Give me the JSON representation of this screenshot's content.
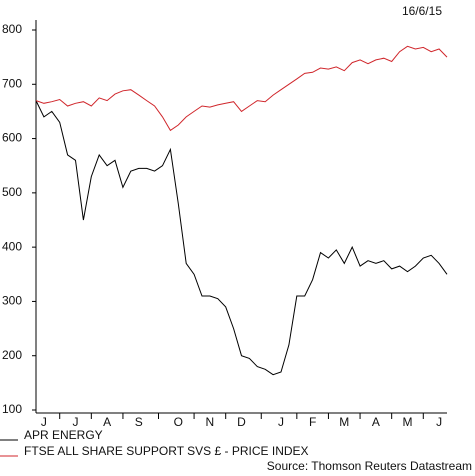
{
  "chart_data": {
    "type": "line",
    "date": "16/6/15",
    "source": "Source: Thomson Reuters Datastream",
    "categories": [
      null,
      "J",
      null,
      null,
      null,
      "J",
      null,
      null,
      null,
      "A",
      null,
      null,
      null,
      "S",
      null,
      null,
      null,
      null,
      "O",
      null,
      null,
      null,
      "N",
      null,
      null,
      null,
      "D",
      null,
      null,
      null,
      null,
      "J",
      null,
      null,
      null,
      "F",
      null,
      null,
      null,
      "M",
      null,
      null,
      null,
      "A",
      null,
      null,
      null,
      "M",
      null,
      null,
      null,
      "J",
      null
    ],
    "series": [
      {
        "name": "APR ENERGY",
        "color": "#000000",
        "values": [
          670,
          640,
          650,
          630,
          570,
          560,
          450,
          530,
          570,
          550,
          560,
          510,
          540,
          545,
          545,
          540,
          550,
          580,
          480,
          370,
          350,
          310,
          310,
          305,
          290,
          250,
          200,
          195,
          180,
          175,
          165,
          170,
          220,
          310,
          310,
          340,
          390,
          380,
          395,
          370,
          400,
          365,
          375,
          370,
          375,
          360,
          365,
          355,
          365,
          380,
          385,
          370,
          350
        ]
      },
      {
        "name": "FTSE ALL SHARE SUPPORT SVS £ - PRICE INDEX",
        "color": "#d0262b",
        "values": [
          670,
          665,
          668,
          672,
          660,
          665,
          668,
          660,
          675,
          670,
          682,
          688,
          690,
          680,
          670,
          660,
          640,
          615,
          625,
          640,
          650,
          660,
          658,
          662,
          665,
          668,
          650,
          660,
          670,
          668,
          680,
          690,
          700,
          710,
          720,
          722,
          730,
          728,
          732,
          725,
          740,
          745,
          738,
          745,
          748,
          742,
          760,
          770,
          765,
          768,
          760,
          765,
          750
        ]
      }
    ],
    "ylim": [
      100,
      800
    ],
    "yticks": [
      100,
      200,
      300,
      400,
      500,
      600,
      700,
      800
    ]
  }
}
